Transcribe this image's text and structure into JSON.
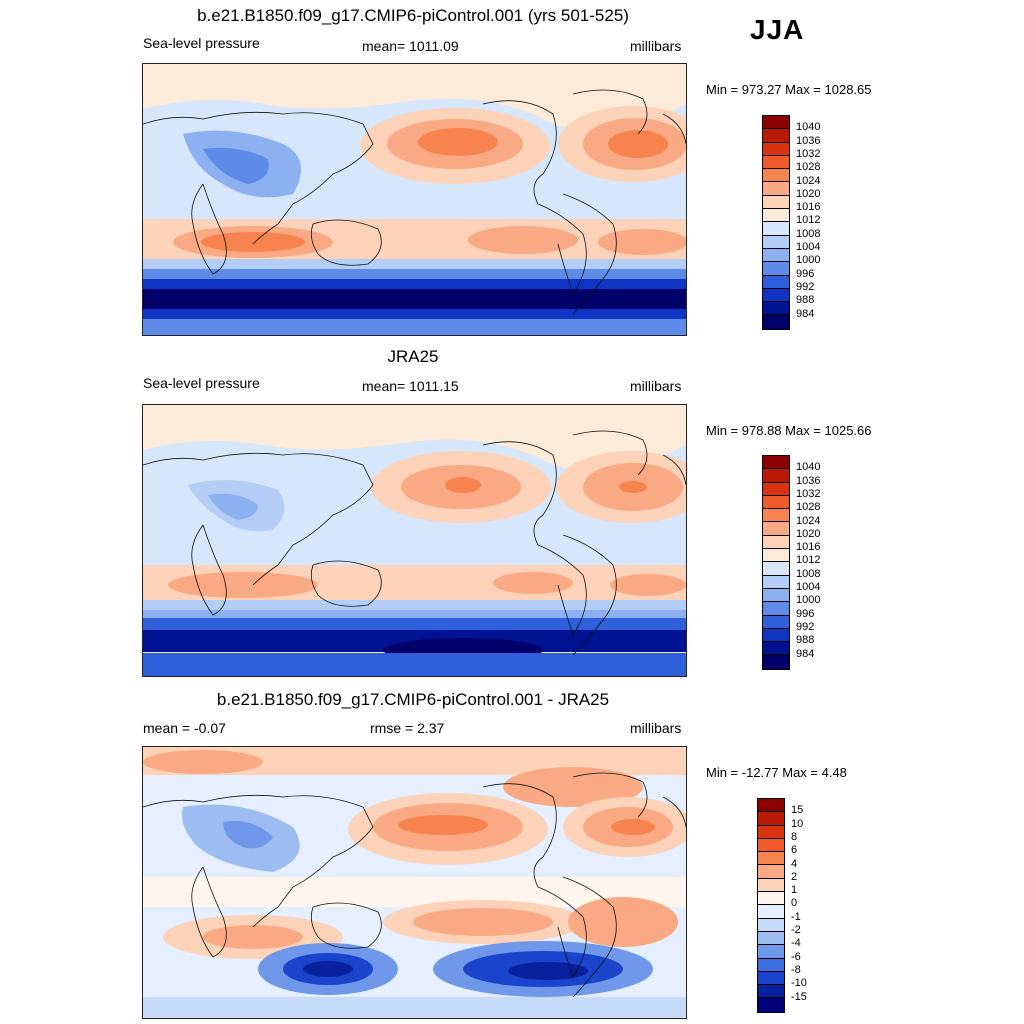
{
  "season": "JJA",
  "panels": [
    {
      "title": "b.e21.B1850.f09_g17.CMIP6-piControl.001 (yrs 501-525)",
      "left": "Sea-level pressure",
      "center": "mean= 1011.09",
      "right": "millibars",
      "minmax": "Min = 973.27 Max = 1028.65",
      "colorbar_labels": [
        "1040",
        "1036",
        "1032",
        "1028",
        "1024",
        "1020",
        "1016",
        "1012",
        "1008",
        "1004",
        "1000",
        "996",
        "992",
        "988",
        "984"
      ]
    },
    {
      "title": "JRA25",
      "left": "Sea-level pressure",
      "center": "mean= 1011.15",
      "right": "millibars",
      "minmax": "Min = 978.88 Max = 1025.66",
      "colorbar_labels": [
        "1040",
        "1036",
        "1032",
        "1028",
        "1024",
        "1020",
        "1016",
        "1012",
        "1008",
        "1004",
        "1000",
        "996",
        "992",
        "988",
        "984"
      ]
    },
    {
      "title": "b.e21.B1850.f09_g17.CMIP6-piControl.001 - JRA25",
      "left": "mean =  -0.07",
      "center": "rmse =   2.37",
      "right": "millibars",
      "minmax": "Min = -12.77 Max =   4.48",
      "colorbar_labels": [
        "15",
        "10",
        "8",
        "6",
        "4",
        "2",
        "1",
        "0",
        "-1",
        "-2",
        "-4",
        "-6",
        "-8",
        "-10",
        "-15"
      ]
    }
  ],
  "colors": {
    "abs_scale": [
      "#8b0000",
      "#b81a05",
      "#d9340f",
      "#f05a28",
      "#f7834f",
      "#f9a983",
      "#fcd2b8",
      "#fdebd9",
      "#d6e6fb",
      "#b3cdf7",
      "#8db0f1",
      "#5e8be8",
      "#2f5fdb",
      "#1035c4",
      "#001493",
      "#00006b"
    ],
    "diff_scale": [
      "#8b0000",
      "#b81a05",
      "#d9340f",
      "#f05a28",
      "#f7834f",
      "#f9a983",
      "#fcd2b8",
      "#fff5ec",
      "#e6efff",
      "#c6daf9",
      "#9dbdf2",
      "#6f98ea",
      "#3f6ee0",
      "#1a44cc",
      "#07209e",
      "#000078"
    ]
  }
}
